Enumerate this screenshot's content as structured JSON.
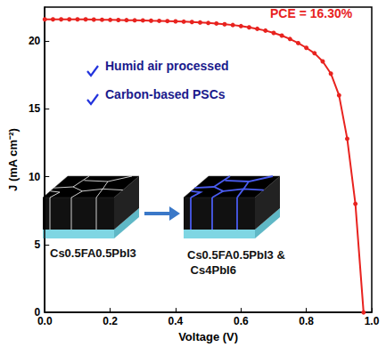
{
  "chart_data": {
    "type": "line",
    "xlabel": "Voltage (V)",
    "ylabel": "J (mA cm⁻²)",
    "xlim": [
      0,
      1
    ],
    "ylim": [
      0,
      22.5
    ],
    "xticks": [
      {
        "value": 0,
        "label": "0.0"
      },
      0.2,
      0.4,
      0.6,
      0.8,
      {
        "value": 1,
        "label": "1.0"
      }
    ],
    "yticks": [
      0,
      5,
      10,
      15,
      20
    ],
    "x": [
      0,
      0.025,
      0.05,
      0.075,
      0.1,
      0.125,
      0.15,
      0.175,
      0.2,
      0.225,
      0.25,
      0.275,
      0.3,
      0.325,
      0.35,
      0.375,
      0.4,
      0.425,
      0.45,
      0.475,
      0.5,
      0.525,
      0.55,
      0.575,
      0.6,
      0.625,
      0.65,
      0.675,
      0.7,
      0.725,
      0.75,
      0.775,
      0.8,
      0.825,
      0.85,
      0.875,
      0.9,
      0.925,
      0.95,
      0.975
    ],
    "series": [
      {
        "color": "#e8231f",
        "marker": "circle",
        "line_style": "solid",
        "values": [
          21.6,
          21.6,
          21.6,
          21.6,
          21.6,
          21.6,
          21.58,
          21.57,
          21.56,
          21.55,
          21.54,
          21.53,
          21.52,
          21.5,
          21.49,
          21.47,
          21.45,
          21.43,
          21.4,
          21.37,
          21.33,
          21.29,
          21.24,
          21.18,
          21.1,
          21.01,
          20.9,
          20.77,
          20.6,
          20.4,
          20.15,
          19.85,
          19.5,
          19.1,
          18.5,
          17.6,
          16.0,
          12.8,
          8.0,
          0
        ]
      }
    ],
    "annotations": [
      {
        "text": "PCE = 16.30%",
        "color": "#e8231f"
      },
      {
        "text": "Humid air processed",
        "color": "#1a1a8c"
      },
      {
        "text": "Carbon-based PSCs",
        "color": "#1a1a8c"
      },
      {
        "text": "Cs0.5FA0.5PbI3",
        "color": "#111111"
      },
      {
        "text": "Cs0.5FA0.5PbI3 & Cs4PbI6",
        "color": "#111111"
      }
    ],
    "grid": false
  }
}
